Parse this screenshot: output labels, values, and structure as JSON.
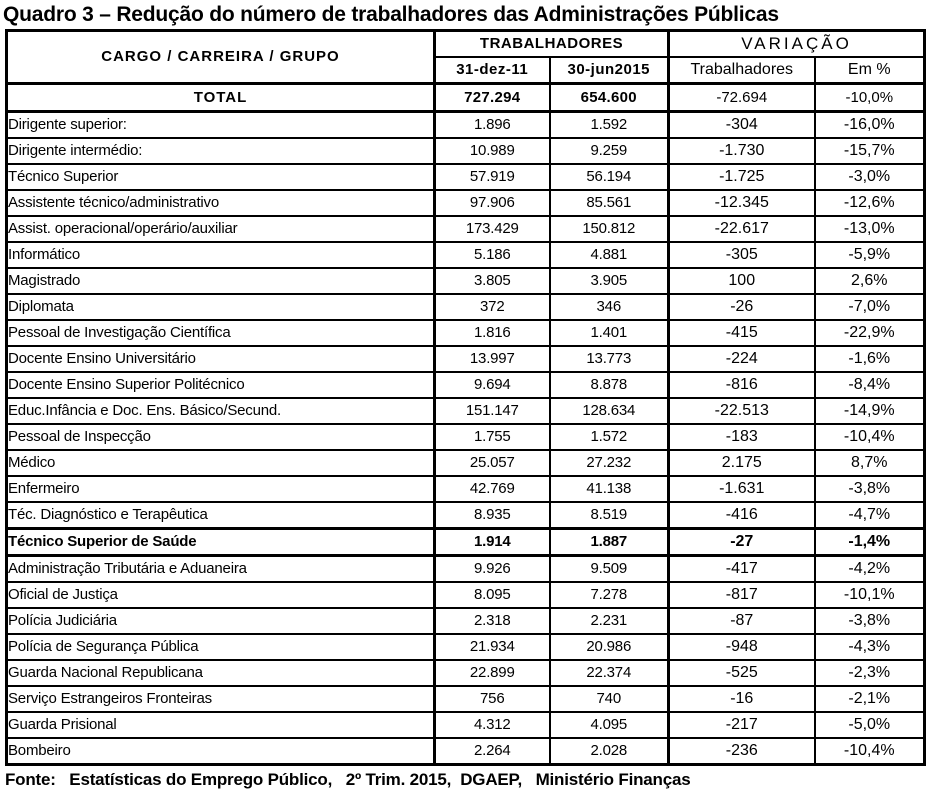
{
  "title": "Quadro 3 – Redução do número de trabalhadores das Administrações Públicas",
  "footer": "Fonte:   Estatísticas do Emprego Público,   2º Trim. 2015,  DGAEP,   Ministério Finanças",
  "colors": {
    "background": "#ffffff",
    "text": "#000000",
    "border": "#000000"
  },
  "table": {
    "header": {
      "cargo": "CARGO / CARREIRA / GRUPO",
      "group_trabalhadores": "TRABALHADORES",
      "group_variacao": "VARIAÇÃO",
      "sub_dez11": "31-dez-11",
      "sub_jun2015": "30-jun2015",
      "sub_var_trabalhadores": "Trabalhadores",
      "sub_var_pct": "Em %"
    },
    "total_row": {
      "label": "TOTAL",
      "dez11": "727.294",
      "jun2015": "654.600",
      "var_workers": "-72.694",
      "var_pct": "-10,0%"
    },
    "rows": [
      {
        "label": "Dirigente superior:",
        "dez11": "1.896",
        "jun2015": "1.592",
        "var_workers": "-304",
        "var_pct": "-16,0%"
      },
      {
        "label": "Dirigente intermédio:",
        "dez11": "10.989",
        "jun2015": "9.259",
        "var_workers": "-1.730",
        "var_pct": "-15,7%"
      },
      {
        "label": "Técnico Superior",
        "dez11": "57.919",
        "jun2015": "56.194",
        "var_workers": "-1.725",
        "var_pct": "-3,0%"
      },
      {
        "label": "Assistente técnico/administrativo",
        "dez11": "97.906",
        "jun2015": "85.561",
        "var_workers": "-12.345",
        "var_pct": "-12,6%"
      },
      {
        "label": "Assist. operacional/operário/auxiliar",
        "dez11": "173.429",
        "jun2015": "150.812",
        "var_workers": "-22.617",
        "var_pct": "-13,0%"
      },
      {
        "label": "Informático",
        "dez11": "5.186",
        "jun2015": "4.881",
        "var_workers": "-305",
        "var_pct": "-5,9%"
      },
      {
        "label": "Magistrado",
        "dez11": "3.805",
        "jun2015": "3.905",
        "var_workers": "100",
        "var_pct": "2,6%"
      },
      {
        "label": "Diplomata",
        "dez11": "372",
        "jun2015": "346",
        "var_workers": "-26",
        "var_pct": "-7,0%"
      },
      {
        "label": "Pessoal de Investigação Científica",
        "dez11": "1.816",
        "jun2015": "1.401",
        "var_workers": "-415",
        "var_pct": "-22,9%"
      },
      {
        "label": "Docente Ensino Universitário",
        "dez11": "13.997",
        "jun2015": "13.773",
        "var_workers": "-224",
        "var_pct": "-1,6%"
      },
      {
        "label": "Docente Ensino Superior Politécnico",
        "dez11": "9.694",
        "jun2015": "8.878",
        "var_workers": "-816",
        "var_pct": "-8,4%"
      },
      {
        "label": "Educ.Infância e Doc. Ens. Básico/Secund.",
        "dez11": "151.147",
        "jun2015": "128.634",
        "var_workers": "-22.513",
        "var_pct": "-14,9%"
      },
      {
        "label": "Pessoal de Inspecção",
        "dez11": "1.755",
        "jun2015": "1.572",
        "var_workers": "-183",
        "var_pct": "-10,4%"
      },
      {
        "label": "Médico",
        "dez11": "25.057",
        "jun2015": "27.232",
        "var_workers": "2.175",
        "var_pct": "8,7%"
      },
      {
        "label": "Enfermeiro",
        "dez11": "42.769",
        "jun2015": "41.138",
        "var_workers": "-1.631",
        "var_pct": "-3,8%"
      },
      {
        "label": "Téc. Diagnóstico e Terapêutica",
        "dez11": "8.935",
        "jun2015": "8.519",
        "var_workers": "-416",
        "var_pct": "-4,7%"
      },
      {
        "label": "Técnico Superior de Saúde",
        "dez11": "1.914",
        "jun2015": "1.887",
        "var_workers": "-27",
        "var_pct": "-1,4%",
        "bold": true
      },
      {
        "label": "Administração Tributária e Aduaneira",
        "dez11": "9.926",
        "jun2015": "9.509",
        "var_workers": "-417",
        "var_pct": "-4,2%"
      },
      {
        "label": "Oficial de Justiça",
        "dez11": "8.095",
        "jun2015": "7.278",
        "var_workers": "-817",
        "var_pct": "-10,1%"
      },
      {
        "label": "Polícia Judiciária",
        "dez11": "2.318",
        "jun2015": "2.231",
        "var_workers": "-87",
        "var_pct": "-3,8%"
      },
      {
        "label": "Polícia de Segurança Pública",
        "dez11": "21.934",
        "jun2015": "20.986",
        "var_workers": "-948",
        "var_pct": "-4,3%"
      },
      {
        "label": "Guarda Nacional Republicana",
        "dez11": "22.899",
        "jun2015": "22.374",
        "var_workers": "-525",
        "var_pct": "-2,3%"
      },
      {
        "label": "Serviço Estrangeiros Fronteiras",
        "dez11": "756",
        "jun2015": "740",
        "var_workers": "-16",
        "var_pct": "-2,1%"
      },
      {
        "label": "Guarda Prisional",
        "dez11": "4.312",
        "jun2015": "4.095",
        "var_workers": "-217",
        "var_pct": "-5,0%"
      },
      {
        "label": "Bombeiro",
        "dez11": "2.264",
        "jun2015": "2.028",
        "var_workers": "-236",
        "var_pct": "-10,4%"
      }
    ]
  }
}
